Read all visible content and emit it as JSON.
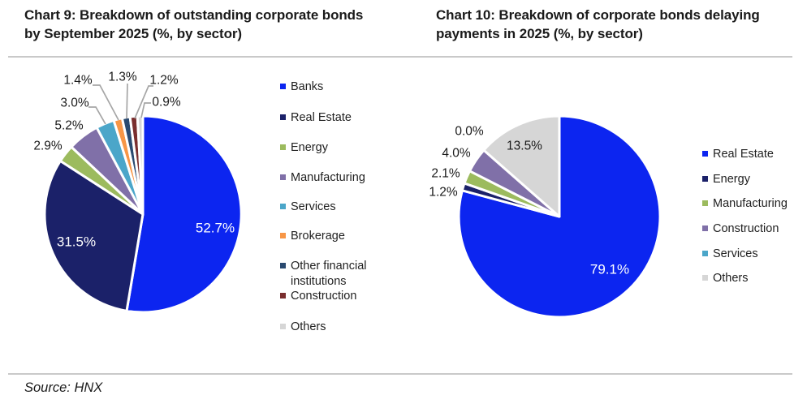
{
  "page": {
    "background": "#FFFFFF",
    "source_note": "Source: HNX"
  },
  "chart_data": [
    {
      "type": "pie",
      "title": "Chart 9: Breakdown of outstanding corporate bonds by September 2025 (%, by sector)",
      "unit": "%",
      "direction": "clockwise",
      "start_angle_deg": 0,
      "legend_position": "right",
      "slice_border_color": "#FFFFFF",
      "callout_line_color": "#A6A6A6",
      "slices": [
        {
          "label": "Banks",
          "value": 52.7,
          "display": "52.7%",
          "color": "#0C25F0"
        },
        {
          "label": "Real Estate",
          "value": 31.5,
          "display": "31.5%",
          "color": "#1B2169"
        },
        {
          "label": "Energy",
          "value": 2.9,
          "display": "2.9%",
          "color": "#9CBB5E"
        },
        {
          "label": "Manufacturing",
          "value": 5.2,
          "display": "5.2%",
          "color": "#8070A8"
        },
        {
          "label": "Services",
          "value": 3.0,
          "display": "3.0%",
          "color": "#4BA6C9"
        },
        {
          "label": "Brokerage",
          "value": 1.4,
          "display": "1.4%",
          "color": "#F79646"
        },
        {
          "label": "Other financial institutions",
          "value": 1.3,
          "display": "1.3%",
          "color": "#2A4A70"
        },
        {
          "label": "Construction",
          "value": 1.2,
          "display": "1.2%",
          "color": "#7A2E2E"
        },
        {
          "label": "Others",
          "value": 0.9,
          "display": "0.9%",
          "color": "#D6D6D6"
        }
      ]
    },
    {
      "type": "pie",
      "title": "Chart 10: Breakdown of corporate bonds delaying payments in 2025 (%, by sector)",
      "unit": "%",
      "direction": "clockwise",
      "start_angle_deg": 0,
      "legend_position": "right",
      "slice_border_color": "#FFFFFF",
      "slices": [
        {
          "label": "Real Estate",
          "value": 79.1,
          "display": "79.1%",
          "color": "#0C25F0"
        },
        {
          "label": "Energy",
          "value": 1.2,
          "display": "1.2%",
          "color": "#1B2169"
        },
        {
          "label": "Manufacturing",
          "value": 2.1,
          "display": "2.1%",
          "color": "#9CBB5E"
        },
        {
          "label": "Construction",
          "value": 4.0,
          "display": "4.0%",
          "color": "#8070A8"
        },
        {
          "label": "Services",
          "value": 0.0,
          "display": "0.0%",
          "color": "#4BA6C9"
        },
        {
          "label": "Others",
          "value": 13.5,
          "display": "13.5%",
          "color": "#D6D6D6"
        }
      ]
    }
  ]
}
